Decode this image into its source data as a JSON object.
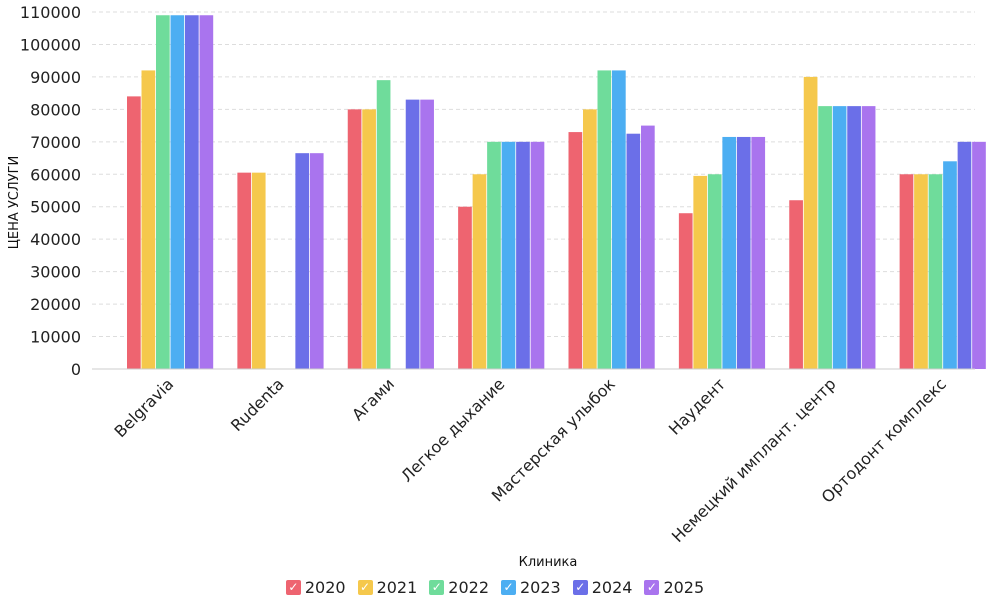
{
  "chart_data": {
    "type": "bar",
    "title": "",
    "xlabel": "Клиника",
    "ylabel": "ЦЕНА УСЛУГИ",
    "ylim": [
      0,
      110000
    ],
    "yticks": [
      0,
      10000,
      20000,
      30000,
      40000,
      50000,
      60000,
      70000,
      80000,
      90000,
      100000,
      110000
    ],
    "grid": true,
    "legend_position": "bottom",
    "categories": [
      "Belgravia",
      "Rudenta",
      "Агами",
      "Легкое дыхание",
      "Мастерская улыбок",
      "Наудент",
      "Немецкий имплант. центр",
      "Ортодонт комплекс"
    ],
    "series": [
      {
        "name": "2020",
        "color": "#ee6470",
        "values": [
          84000,
          60500,
          80000,
          50000,
          73000,
          48000,
          52000,
          60000
        ]
      },
      {
        "name": "2021",
        "color": "#f5c84c",
        "values": [
          92000,
          60500,
          80000,
          60000,
          80000,
          59500,
          90000,
          60000
        ]
      },
      {
        "name": "2022",
        "color": "#6fdc9b",
        "values": [
          109000,
          null,
          89000,
          70000,
          92000,
          60000,
          81000,
          60000
        ]
      },
      {
        "name": "2023",
        "color": "#4caef2",
        "values": [
          109000,
          null,
          null,
          70000,
          92000,
          71500,
          81000,
          64000
        ]
      },
      {
        "name": "2024",
        "color": "#6b6fe8",
        "values": [
          109000,
          66500,
          83000,
          70000,
          72500,
          71500,
          81000,
          70000
        ]
      },
      {
        "name": "2025",
        "color": "#a974ee",
        "values": [
          109000,
          66500,
          83000,
          70000,
          75000,
          71500,
          81000,
          70000
        ]
      }
    ]
  },
  "legend": {
    "check_glyph": "✓",
    "items": [
      "2020",
      "2021",
      "2022",
      "2023",
      "2024",
      "2025"
    ]
  }
}
